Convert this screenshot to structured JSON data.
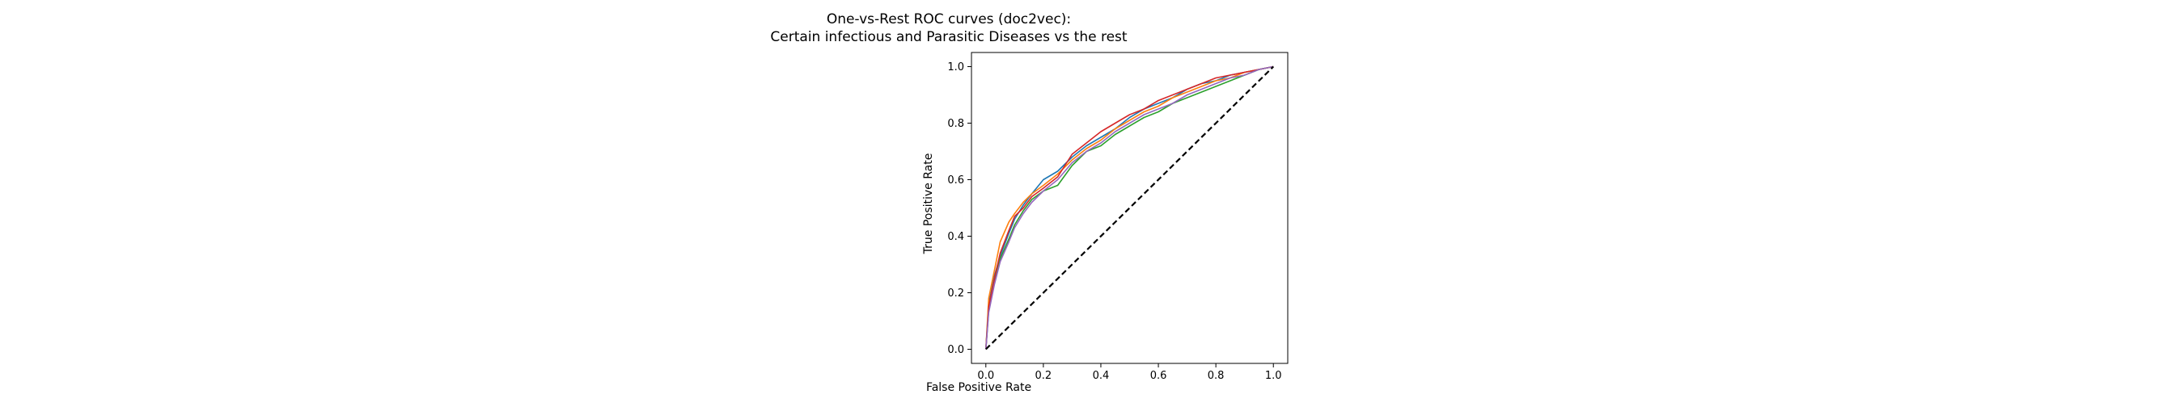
{
  "chart_data": {
    "type": "line",
    "title": "One-vs-Rest ROC curves (doc2vec):",
    "subtitle": "Certain infectious and Parasitic Diseases vs the rest",
    "xlabel": "False Positive Rate",
    "ylabel": "True Positive Rate",
    "xlim": [
      -0.05,
      1.05
    ],
    "ylim": [
      -0.05,
      1.05
    ],
    "xticks": [
      "0.0",
      "0.2",
      "0.4",
      "0.6",
      "0.8",
      "1.0"
    ],
    "yticks": [
      "0.0",
      "0.2",
      "0.4",
      "0.6",
      "0.8",
      "1.0"
    ],
    "grid": false,
    "legend": "none",
    "series": [
      {
        "color": "#1f77b4",
        "x": [
          0,
          0.01,
          0.03,
          0.05,
          0.08,
          0.1,
          0.13,
          0.16,
          0.2,
          0.25,
          0.3,
          0.35,
          0.4,
          0.45,
          0.5,
          0.55,
          0.6,
          0.65,
          0.7,
          0.75,
          0.8,
          0.85,
          0.9,
          0.95,
          1.0
        ],
        "y": [
          0,
          0.16,
          0.26,
          0.33,
          0.41,
          0.46,
          0.51,
          0.55,
          0.6,
          0.63,
          0.68,
          0.72,
          0.75,
          0.78,
          0.82,
          0.85,
          0.87,
          0.89,
          0.92,
          0.94,
          0.95,
          0.97,
          0.98,
          0.99,
          1.0
        ]
      },
      {
        "color": "#ff7f0e",
        "x": [
          0,
          0.01,
          0.03,
          0.05,
          0.08,
          0.1,
          0.13,
          0.16,
          0.2,
          0.25,
          0.3,
          0.35,
          0.4,
          0.45,
          0.5,
          0.55,
          0.6,
          0.65,
          0.7,
          0.75,
          0.8,
          0.85,
          0.9,
          0.95,
          1.0
        ],
        "y": [
          0,
          0.18,
          0.28,
          0.38,
          0.45,
          0.48,
          0.52,
          0.55,
          0.58,
          0.62,
          0.67,
          0.71,
          0.74,
          0.78,
          0.81,
          0.84,
          0.86,
          0.89,
          0.91,
          0.93,
          0.95,
          0.96,
          0.98,
          0.99,
          1.0
        ]
      },
      {
        "color": "#2ca02c",
        "x": [
          0,
          0.01,
          0.03,
          0.05,
          0.08,
          0.1,
          0.13,
          0.16,
          0.2,
          0.25,
          0.3,
          0.35,
          0.4,
          0.45,
          0.5,
          0.55,
          0.6,
          0.65,
          0.7,
          0.75,
          0.8,
          0.85,
          0.9,
          0.95,
          1.0
        ],
        "y": [
          0,
          0.14,
          0.24,
          0.32,
          0.39,
          0.44,
          0.49,
          0.53,
          0.56,
          0.58,
          0.65,
          0.7,
          0.72,
          0.76,
          0.79,
          0.82,
          0.84,
          0.87,
          0.89,
          0.91,
          0.93,
          0.95,
          0.97,
          0.99,
          1.0
        ]
      },
      {
        "color": "#d62728",
        "x": [
          0,
          0.01,
          0.03,
          0.05,
          0.08,
          0.1,
          0.13,
          0.16,
          0.2,
          0.25,
          0.3,
          0.35,
          0.4,
          0.45,
          0.5,
          0.55,
          0.6,
          0.65,
          0.7,
          0.75,
          0.8,
          0.85,
          0.9,
          0.95,
          1.0
        ],
        "y": [
          0,
          0.15,
          0.25,
          0.34,
          0.42,
          0.47,
          0.5,
          0.54,
          0.57,
          0.61,
          0.69,
          0.73,
          0.77,
          0.8,
          0.83,
          0.85,
          0.88,
          0.9,
          0.92,
          0.94,
          0.96,
          0.97,
          0.98,
          0.99,
          1.0
        ]
      },
      {
        "color": "#9467bd",
        "x": [
          0,
          0.01,
          0.03,
          0.05,
          0.08,
          0.1,
          0.13,
          0.16,
          0.2,
          0.25,
          0.3,
          0.35,
          0.4,
          0.45,
          0.5,
          0.55,
          0.6,
          0.65,
          0.7,
          0.75,
          0.8,
          0.85,
          0.9,
          0.95,
          1.0
        ],
        "y": [
          0,
          0.13,
          0.23,
          0.31,
          0.38,
          0.43,
          0.48,
          0.52,
          0.56,
          0.6,
          0.66,
          0.7,
          0.73,
          0.77,
          0.8,
          0.83,
          0.85,
          0.87,
          0.9,
          0.92,
          0.94,
          0.96,
          0.97,
          0.99,
          1.0
        ]
      }
    ],
    "reference_line": {
      "color": "#000000",
      "style": "dashed",
      "x": [
        0,
        1
      ],
      "y": [
        0,
        1
      ]
    }
  }
}
